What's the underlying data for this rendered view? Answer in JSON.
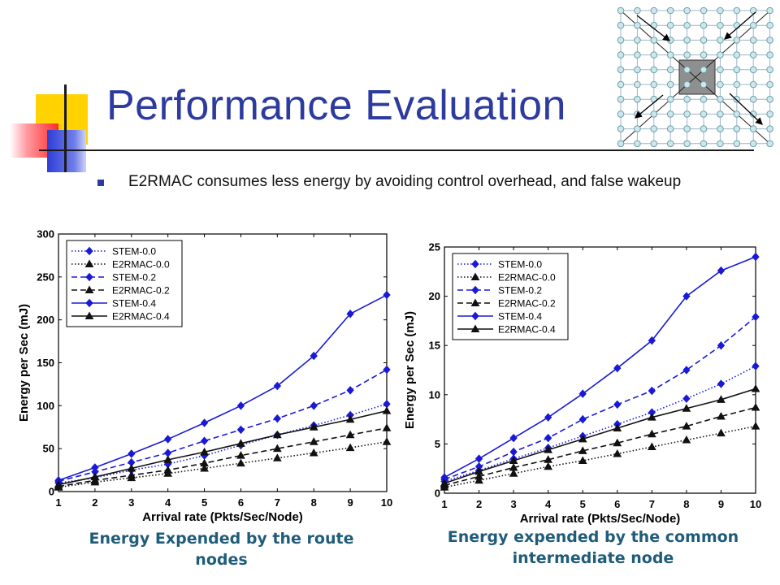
{
  "slide": {
    "title": "Performance Evaluation",
    "bullets": [
      "E2RMAC consumes less energy by avoiding control overhead, and false wakeup"
    ],
    "accent_color": "#2d3b9e",
    "caption_color": "#1f5c7a"
  },
  "chart_data": [
    {
      "type": "line",
      "caption": "Energy Expended by the route nodes",
      "xlabel": "Arrival rate (Pkts/Sec/Node)",
      "ylabel": "Energy per Sec (mJ)",
      "xlim": [
        1,
        10
      ],
      "ylim": [
        0,
        300
      ],
      "xticks": [
        1,
        2,
        3,
        4,
        5,
        6,
        7,
        8,
        9,
        10
      ],
      "yticks": [
        0,
        50,
        100,
        150,
        200,
        250,
        300
      ],
      "legend_position": "top-left",
      "x": [
        1,
        2,
        3,
        4,
        5,
        6,
        7,
        8,
        9,
        10
      ],
      "series": [
        {
          "name": "STEM-0.0",
          "color": "#1a1ad6",
          "dash": "dotted",
          "marker": "diamond",
          "values": [
            10,
            16,
            25,
            32,
            42,
            54,
            66,
            77,
            89,
            102
          ]
        },
        {
          "name": "E2RMAC-0.0",
          "color": "#111111",
          "dash": "dotted",
          "marker": "triangle",
          "values": [
            5,
            11,
            16,
            21,
            27,
            33,
            39,
            45,
            51,
            58
          ]
        },
        {
          "name": "STEM-0.2",
          "color": "#1a1ad6",
          "dash": "dashed",
          "marker": "diamond",
          "values": [
            12,
            23,
            34,
            45,
            59,
            72,
            85,
            100,
            118,
            142
          ]
        },
        {
          "name": "E2RMAC-0.2",
          "color": "#111111",
          "dash": "dashed",
          "marker": "triangle",
          "values": [
            6,
            13,
            19,
            25,
            33,
            42,
            50,
            58,
            66,
            74
          ]
        },
        {
          "name": "STEM-0.4",
          "color": "#1a1ad6",
          "dash": "solid",
          "marker": "diamond",
          "values": [
            13,
            28,
            44,
            61,
            80,
            100,
            123,
            158,
            207,
            229
          ]
        },
        {
          "name": "E2RMAC-0.4",
          "color": "#111111",
          "dash": "solid",
          "marker": "triangle",
          "values": [
            8,
            17,
            27,
            37,
            46,
            56,
            66,
            75,
            84,
            94
          ]
        }
      ]
    },
    {
      "type": "line",
      "caption": "Energy expended by the common intermediate node",
      "xlabel": "Arrival rate (Pkts/Sec/Node)",
      "ylabel": "Energy per Sec (mJ)",
      "xlim": [
        1,
        10
      ],
      "ylim": [
        0,
        25
      ],
      "xticks": [
        1,
        2,
        3,
        4,
        5,
        6,
        7,
        8,
        9,
        10
      ],
      "yticks": [
        0,
        5,
        10,
        15,
        20,
        25
      ],
      "legend_position": "top-left",
      "x": [
        1,
        2,
        3,
        4,
        5,
        6,
        7,
        8,
        9,
        10
      ],
      "series": [
        {
          "name": "STEM-0.0",
          "color": "#1a1ad6",
          "dash": "dotted",
          "marker": "diamond",
          "values": [
            1.2,
            2.3,
            3.5,
            4.6,
            5.8,
            7.0,
            8.2,
            9.6,
            11.1,
            12.9
          ]
        },
        {
          "name": "E2RMAC-0.0",
          "color": "#111111",
          "dash": "dotted",
          "marker": "triangle",
          "values": [
            0.6,
            1.3,
            2.0,
            2.7,
            3.3,
            4.0,
            4.7,
            5.4,
            6.1,
            6.8
          ]
        },
        {
          "name": "STEM-0.2",
          "color": "#1a1ad6",
          "dash": "dashed",
          "marker": "diamond",
          "values": [
            1.4,
            2.7,
            4.2,
            5.6,
            7.5,
            9.0,
            10.4,
            12.5,
            15.0,
            17.9
          ]
        },
        {
          "name": "E2RMAC-0.2",
          "color": "#111111",
          "dash": "dashed",
          "marker": "triangle",
          "values": [
            0.8,
            1.7,
            2.6,
            3.4,
            4.3,
            5.1,
            6.0,
            6.8,
            7.8,
            8.7
          ]
        },
        {
          "name": "STEM-0.4",
          "color": "#1a1ad6",
          "dash": "solid",
          "marker": "diamond",
          "values": [
            1.6,
            3.5,
            5.6,
            7.7,
            10.1,
            12.7,
            15.5,
            20.0,
            22.6,
            24.0
          ]
        },
        {
          "name": "E2RMAC-0.4",
          "color": "#111111",
          "dash": "solid",
          "marker": "triangle",
          "values": [
            1.0,
            2.2,
            3.3,
            4.4,
            5.5,
            6.6,
            7.7,
            8.6,
            9.5,
            10.6
          ]
        }
      ]
    }
  ]
}
